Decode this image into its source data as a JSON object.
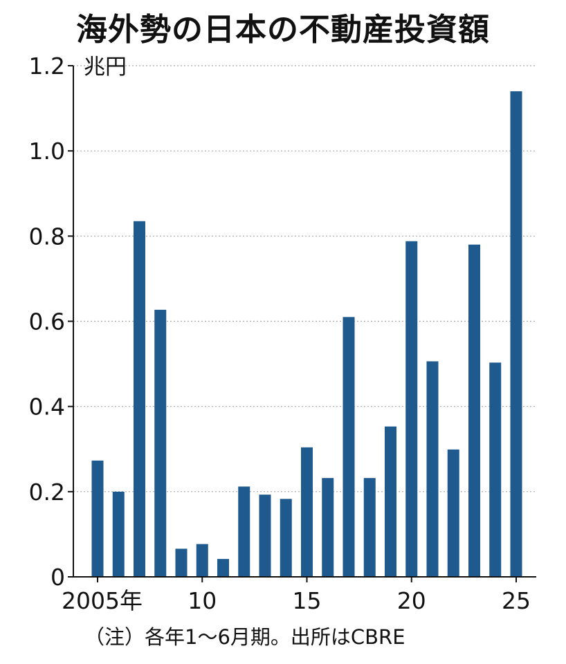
{
  "chart_data": {
    "type": "bar",
    "title": "海外勢の日本の不動産投資額",
    "unit": "兆円",
    "x": [
      2005,
      2006,
      2007,
      2008,
      2009,
      2010,
      2011,
      2012,
      2013,
      2014,
      2015,
      2016,
      2017,
      2018,
      2019,
      2020,
      2021,
      2022,
      2023,
      2024,
      2025
    ],
    "values": [
      0.273,
      0.2,
      0.835,
      0.627,
      0.066,
      0.077,
      0.042,
      0.212,
      0.193,
      0.183,
      0.304,
      0.232,
      0.61,
      0.232,
      0.353,
      0.788,
      0.506,
      0.299,
      0.78,
      0.503,
      1.14
    ],
    "x_tick_labels": [
      {
        "x": 2005,
        "label": "2005年"
      },
      {
        "x": 2010,
        "label": "10"
      },
      {
        "x": 2015,
        "label": "15"
      },
      {
        "x": 2020,
        "label": "20"
      },
      {
        "x": 2025,
        "label": "25"
      }
    ],
    "y_ticks": [
      0,
      0.2,
      0.4,
      0.6,
      0.8,
      1.0,
      1.2
    ],
    "y_tick_labels": [
      "0",
      "0.2",
      "0.4",
      "0.6",
      "0.8",
      "1.0",
      "1.2"
    ],
    "ylim": [
      0,
      1.2
    ],
    "grid": true,
    "bar_color": "#1f5a8f",
    "grid_color": "#a8a8a8",
    "note": "（注）各年1～6月期。出所はCBRE"
  }
}
